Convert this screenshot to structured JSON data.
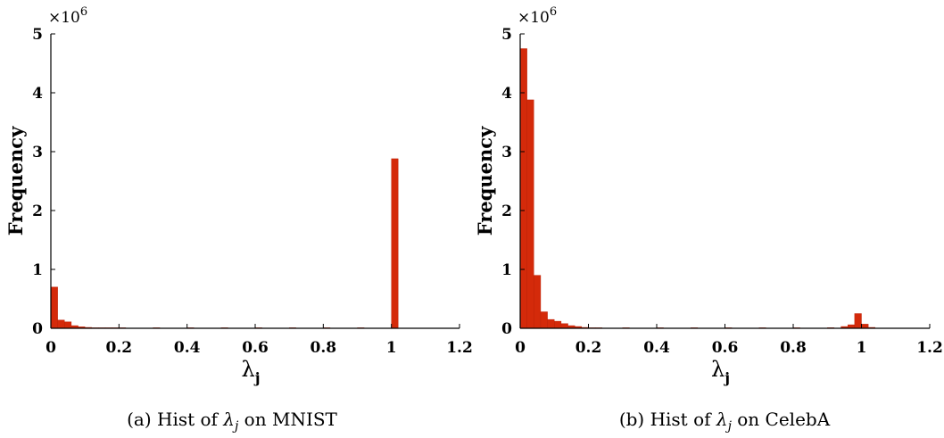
{
  "colors": {
    "bar_fill": "#d42a0a",
    "bar_edge": "#b81f05",
    "axis": "#000000"
  },
  "chart_data": [
    {
      "type": "bar",
      "title": "",
      "caption": {
        "prefix": "(a) Hist of ",
        "symbol": "λ",
        "subscript": "j",
        "suffix": " on MNIST"
      },
      "xlabel": {
        "symbol": "λ",
        "subscript": "j"
      },
      "ylabel": "Frequency",
      "y_multiplier": {
        "base": "×10",
        "exponent": "6"
      },
      "xlim": [
        0,
        1.2
      ],
      "ylim": [
        0,
        5000000
      ],
      "xticks": [
        "0",
        "0.2",
        "0.4",
        "0.6",
        "0.8",
        "1",
        "1.2"
      ],
      "yticks": [
        "0",
        "1",
        "2",
        "3",
        "4",
        "5"
      ],
      "bin_width": 0.02,
      "bins": [
        {
          "x": 0.0,
          "y": 700000
        },
        {
          "x": 0.02,
          "y": 140000
        },
        {
          "x": 0.04,
          "y": 110000
        },
        {
          "x": 0.06,
          "y": 45000
        },
        {
          "x": 0.08,
          "y": 25000
        },
        {
          "x": 0.1,
          "y": 15000
        },
        {
          "x": 0.12,
          "y": 9000
        },
        {
          "x": 0.14,
          "y": 6000
        },
        {
          "x": 0.16,
          "y": 4500
        },
        {
          "x": 0.18,
          "y": 3500
        },
        {
          "x": 0.2,
          "y": 3000
        },
        {
          "x": 0.3,
          "y": 2500
        },
        {
          "x": 0.4,
          "y": 2500
        },
        {
          "x": 0.5,
          "y": 2500
        },
        {
          "x": 0.6,
          "y": 2500
        },
        {
          "x": 0.7,
          "y": 2500
        },
        {
          "x": 0.8,
          "y": 3000
        },
        {
          "x": 0.9,
          "y": 4000
        },
        {
          "x": 1.0,
          "y": 2880000
        }
      ]
    },
    {
      "type": "bar",
      "title": "",
      "caption": {
        "prefix": "(b) Hist of ",
        "symbol": "λ",
        "subscript": "j",
        "suffix": " on CelebA"
      },
      "xlabel": {
        "symbol": "λ",
        "subscript": "j"
      },
      "ylabel": "Frequency",
      "y_multiplier": {
        "base": "×10",
        "exponent": "6"
      },
      "xlim": [
        0,
        1.2
      ],
      "ylim": [
        0,
        5000000
      ],
      "xticks": [
        "0",
        "0.2",
        "0.4",
        "0.6",
        "0.8",
        "1",
        "1.2"
      ],
      "yticks": [
        "0",
        "1",
        "2",
        "3",
        "4",
        "5"
      ],
      "bin_width": 0.02,
      "bins": [
        {
          "x": 0.0,
          "y": 4750000
        },
        {
          "x": 0.02,
          "y": 3880000
        },
        {
          "x": 0.04,
          "y": 900000
        },
        {
          "x": 0.06,
          "y": 280000
        },
        {
          "x": 0.08,
          "y": 150000
        },
        {
          "x": 0.1,
          "y": 120000
        },
        {
          "x": 0.12,
          "y": 80000
        },
        {
          "x": 0.14,
          "y": 45000
        },
        {
          "x": 0.16,
          "y": 30000
        },
        {
          "x": 0.18,
          "y": 15000
        },
        {
          "x": 0.2,
          "y": 8000
        },
        {
          "x": 0.22,
          "y": 5000
        },
        {
          "x": 0.3,
          "y": 3000
        },
        {
          "x": 0.4,
          "y": 2500
        },
        {
          "x": 0.5,
          "y": 2500
        },
        {
          "x": 0.6,
          "y": 2500
        },
        {
          "x": 0.7,
          "y": 2500
        },
        {
          "x": 0.8,
          "y": 3000
        },
        {
          "x": 0.9,
          "y": 10000
        },
        {
          "x": 0.94,
          "y": 30000
        },
        {
          "x": 0.96,
          "y": 60000
        },
        {
          "x": 0.98,
          "y": 250000
        },
        {
          "x": 1.0,
          "y": 70000
        },
        {
          "x": 1.02,
          "y": 15000
        }
      ]
    }
  ]
}
